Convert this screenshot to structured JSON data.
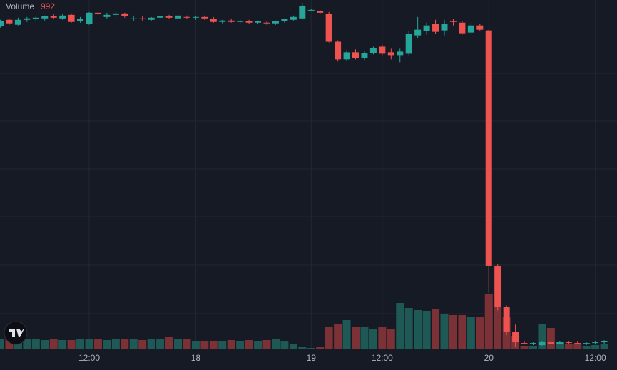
{
  "chart_data": {
    "type": "candlestick",
    "legend_label": "Volume",
    "volume_last_label": "992",
    "up_color": "#26a69a",
    "down_color": "#ef5350",
    "volume_up_color": "#1f5955",
    "volume_down_color": "#7b3136",
    "categories": [
      null,
      null,
      null,
      null,
      null,
      null,
      null,
      null,
      null,
      null,
      "12:00",
      null,
      null,
      null,
      null,
      null,
      null,
      null,
      null,
      null,
      null,
      null,
      "18",
      null,
      null,
      null,
      null,
      null,
      null,
      null,
      null,
      null,
      null,
      null,
      null,
      "19",
      null,
      null,
      null,
      null,
      null,
      null,
      null,
      "12:00",
      null,
      null,
      null,
      null,
      null,
      null,
      null,
      null,
      null,
      null,
      null,
      "20",
      null,
      null,
      null,
      null,
      null,
      null,
      null,
      null,
      null,
      null,
      null,
      "12:00",
      null
    ],
    "open": [
      457,
      466,
      459,
      466,
      467,
      468,
      471,
      468,
      473,
      464,
      460,
      476,
      470,
      473,
      475,
      467,
      468,
      466,
      469,
      471,
      468,
      470,
      469,
      470,
      467,
      463,
      465,
      463,
      464,
      462,
      462,
      461,
      464,
      466,
      468,
      480,
      478,
      474,
      435,
      410,
      420,
      412,
      419,
      428,
      420,
      416,
      418,
      444,
      450,
      460,
      451,
      464,
      462,
      448,
      458,
      451,
      118,
      60,
      25,
      9,
      8,
      6,
      10,
      8,
      10,
      9,
      8,
      9,
      10
    ],
    "high": [
      466,
      468,
      469,
      470,
      471,
      472,
      474,
      474,
      475,
      470,
      477,
      478,
      476,
      477,
      476,
      472,
      471,
      470,
      472,
      473,
      473,
      472,
      471,
      472,
      470,
      466,
      467,
      466,
      466,
      465,
      464,
      465,
      468,
      472,
      490,
      481,
      480,
      477,
      437,
      423,
      424,
      422,
      428,
      431,
      425,
      425,
      450,
      470,
      462,
      466,
      466,
      467,
      464,
      462,
      460,
      452,
      120,
      62,
      35,
      11,
      10,
      12,
      11,
      12,
      11,
      11,
      10,
      11,
      13
    ],
    "low": [
      455,
      459,
      458,
      463,
      464,
      465,
      467,
      466,
      462,
      462,
      459,
      471,
      468,
      470,
      469,
      464,
      465,
      464,
      467,
      467,
      466,
      467,
      466,
      466,
      462,
      461,
      462,
      461,
      460,
      460,
      459,
      459,
      462,
      465,
      467,
      479,
      475,
      434,
      407,
      408,
      410,
      409,
      417,
      416,
      410,
      406,
      416,
      440,
      445,
      446,
      444,
      458,
      445,
      446,
      450,
      80,
      55,
      20,
      3,
      7,
      6,
      5,
      7,
      7,
      8,
      7,
      6,
      7,
      8
    ],
    "close": [
      464,
      461,
      466,
      468,
      469,
      471,
      469,
      472,
      463,
      467,
      476,
      474,
      473,
      475,
      471,
      468,
      467,
      469,
      471,
      469,
      472,
      469,
      470,
      468,
      463,
      465,
      463,
      464,
      462,
      464,
      461,
      464,
      467,
      470,
      486,
      480,
      476,
      435,
      410,
      420,
      412,
      419,
      426,
      418,
      416,
      421,
      446,
      452,
      458,
      449,
      460,
      463,
      447,
      458,
      452,
      118,
      60,
      25,
      10,
      8,
      9,
      10,
      8,
      10,
      9,
      8,
      9,
      10,
      12
    ],
    "volume": [
      1736,
      1860,
      1736,
      1736,
      1860,
      1612,
      1736,
      1612,
      1612,
      1736,
      1736,
      1736,
      1612,
      1736,
      1860,
      1860,
      1612,
      1736,
      1736,
      2108,
      1860,
      1736,
      1488,
      1488,
      1488,
      1364,
      1612,
      1488,
      1612,
      1488,
      1612,
      1736,
      1488,
      992,
      372,
      248,
      372,
      3968,
      4340,
      5084,
      3968,
      3844,
      3472,
      3844,
      3472,
      8060,
      7192,
      6820,
      6696,
      6944,
      6200,
      5952,
      5952,
      5580,
      5580,
      9548,
      7440,
      5704,
      2232,
      620,
      496,
      4340,
      3720,
      1240,
      992,
      992,
      496,
      744,
      992
    ],
    "ylim": [
      0,
      494
    ],
    "volume_ylim": [
      0,
      12400
    ]
  }
}
